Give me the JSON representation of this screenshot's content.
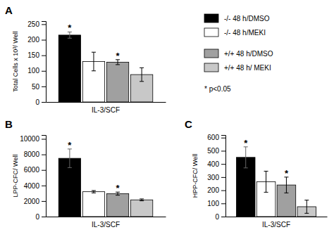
{
  "chart_data": [
    {
      "type": "bar",
      "title": "A",
      "xlabel": "IL-3/SCF",
      "ylabel": "Total Cells x 10³/ Well",
      "categories": [
        null
      ],
      "series": [
        {
          "name": "-/- 48 h/DMSO",
          "color": "black",
          "values": [
            215
          ],
          "errors": [
            10
          ]
        },
        {
          "name": "-/- 48 h/MEKI",
          "color": "white",
          "values": [
            130
          ],
          "errors": [
            30
          ]
        },
        {
          "name": "+/+ 48 h/DMSO",
          "color": "#a0a0a0",
          "values": [
            128
          ],
          "errors": [
            8
          ]
        },
        {
          "name": "+/+ 48 h/ MEKI",
          "color": "#c8c8c8",
          "values": [
            88
          ],
          "errors": [
            22
          ]
        }
      ],
      "ylim": [
        0,
        260
      ],
      "yticks": [
        0,
        50,
        100,
        150,
        200,
        250
      ],
      "grid": false,
      "tick_labels": "y",
      "legend": "right",
      "annotations": [
        {
          "text": "*",
          "series": 0,
          "index": 0
        },
        {
          "text": "*",
          "series": 2,
          "index": 0
        },
        {
          "text": "* p<0.05"
        }
      ]
    },
    {
      "type": "bar",
      "title": "B",
      "xlabel": "IL-3/SCF",
      "ylabel": "LPP-CFC/ Well",
      "categories": [
        null
      ],
      "series": [
        {
          "color": "black",
          "values": [
            7500
          ],
          "errors": [
            1200
          ]
        },
        {
          "color": "white",
          "values": [
            3200
          ],
          "errors": [
            150
          ]
        },
        {
          "color": "#a0a0a0",
          "values": [
            2950
          ],
          "errors": [
            200
          ]
        },
        {
          "color": "#c8c8c8",
          "values": [
            2150
          ],
          "errors": [
            120
          ]
        }
      ],
      "ylim": [
        0,
        10500
      ],
      "yticks": [
        0,
        2000,
        4000,
        6000,
        8000,
        10000
      ],
      "grid": false,
      "tick_labels": "y",
      "annotations": [
        {
          "text": "*",
          "series": 0,
          "index": 0
        },
        {
          "text": "*",
          "series": 2,
          "index": 0
        }
      ]
    },
    {
      "type": "bar",
      "title": "C",
      "xlabel": "IL-3/SCF",
      "ylabel": "HPP-CFC/ Well",
      "categories": [
        null
      ],
      "series": [
        {
          "color": "black",
          "values": [
            450
          ],
          "errors": [
            80
          ]
        },
        {
          "color": "white",
          "values": [
            265
          ],
          "errors": [
            80
          ]
        },
        {
          "color": "#a0a0a0",
          "values": [
            240
          ],
          "errors": [
            60
          ]
        },
        {
          "color": "#c8c8c8",
          "values": [
            75
          ],
          "errors": [
            50
          ]
        }
      ],
      "ylim": [
        0,
        620
      ],
      "yticks": [
        0,
        100,
        200,
        300,
        400,
        500,
        600
      ],
      "grid": false,
      "tick_labels": "y",
      "annotations": [
        {
          "text": "*",
          "series": 0,
          "index": 0
        },
        {
          "text": "*",
          "series": 2,
          "index": 0
        }
      ]
    }
  ]
}
